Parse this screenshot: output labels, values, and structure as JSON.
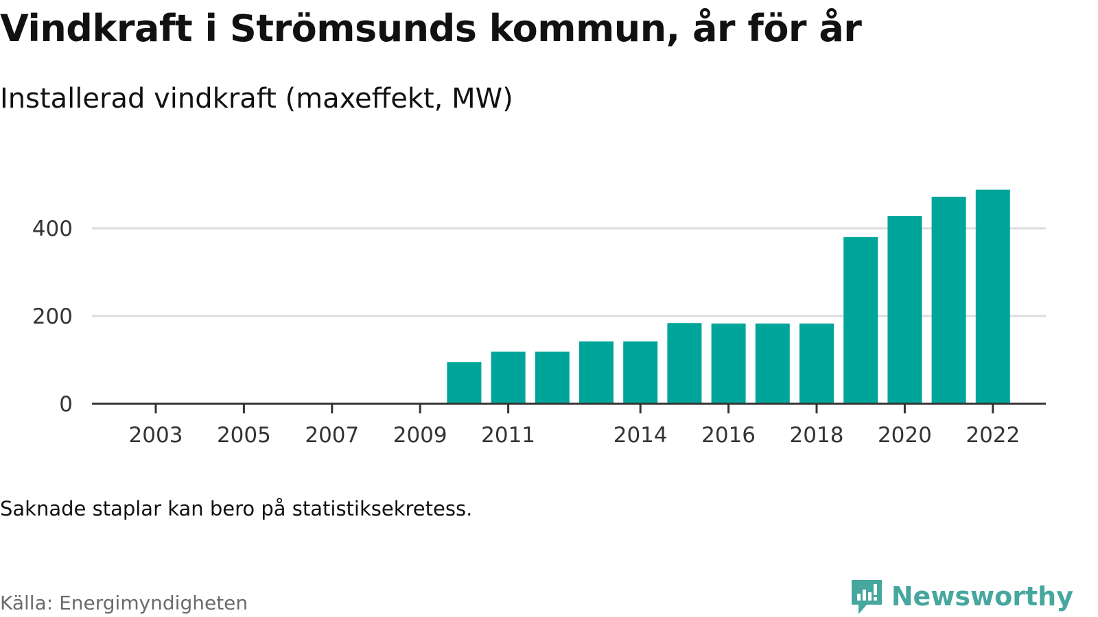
{
  "header": {
    "title": "Vindkraft i Strömsunds kommun, år för år",
    "subtitle": "Installerad vindkraft (maxeffekt, MW)"
  },
  "footer": {
    "note": "Saknade staplar kan bero på statistiksekretess.",
    "source": "Källa: Energimyndigheten",
    "brand": "Newsworthy",
    "brand_icon": "bar-chart-speech-bubble-icon",
    "brand_color": "#46a79e"
  },
  "colors": {
    "bar": "#00a59a",
    "grid": "#dddddd",
    "axis": "#333333"
  },
  "chart_data": {
    "type": "bar",
    "title": "Vindkraft i Strömsunds kommun, år för år",
    "subtitle": "Installerad vindkraft (maxeffekt, MW)",
    "xlabel": "",
    "ylabel": "",
    "categories": [
      2003,
      2004,
      2005,
      2006,
      2007,
      2008,
      2009,
      2010,
      2011,
      2012,
      2013,
      2014,
      2015,
      2016,
      2017,
      2018,
      2019,
      2020,
      2021,
      2022
    ],
    "values": [
      0,
      0,
      0,
      0,
      0,
      0,
      0,
      95,
      119,
      119,
      142,
      142,
      184,
      183,
      183,
      183,
      380,
      428,
      472,
      488
    ],
    "x_tick_labels": [
      "2003",
      "2005",
      "2007",
      "2009",
      "2011",
      "2014",
      "2016",
      "2018",
      "2020",
      "2022"
    ],
    "y_ticks": [
      0,
      200,
      400
    ],
    "ylim": [
      0,
      500
    ],
    "grid": true,
    "legend": "none"
  }
}
